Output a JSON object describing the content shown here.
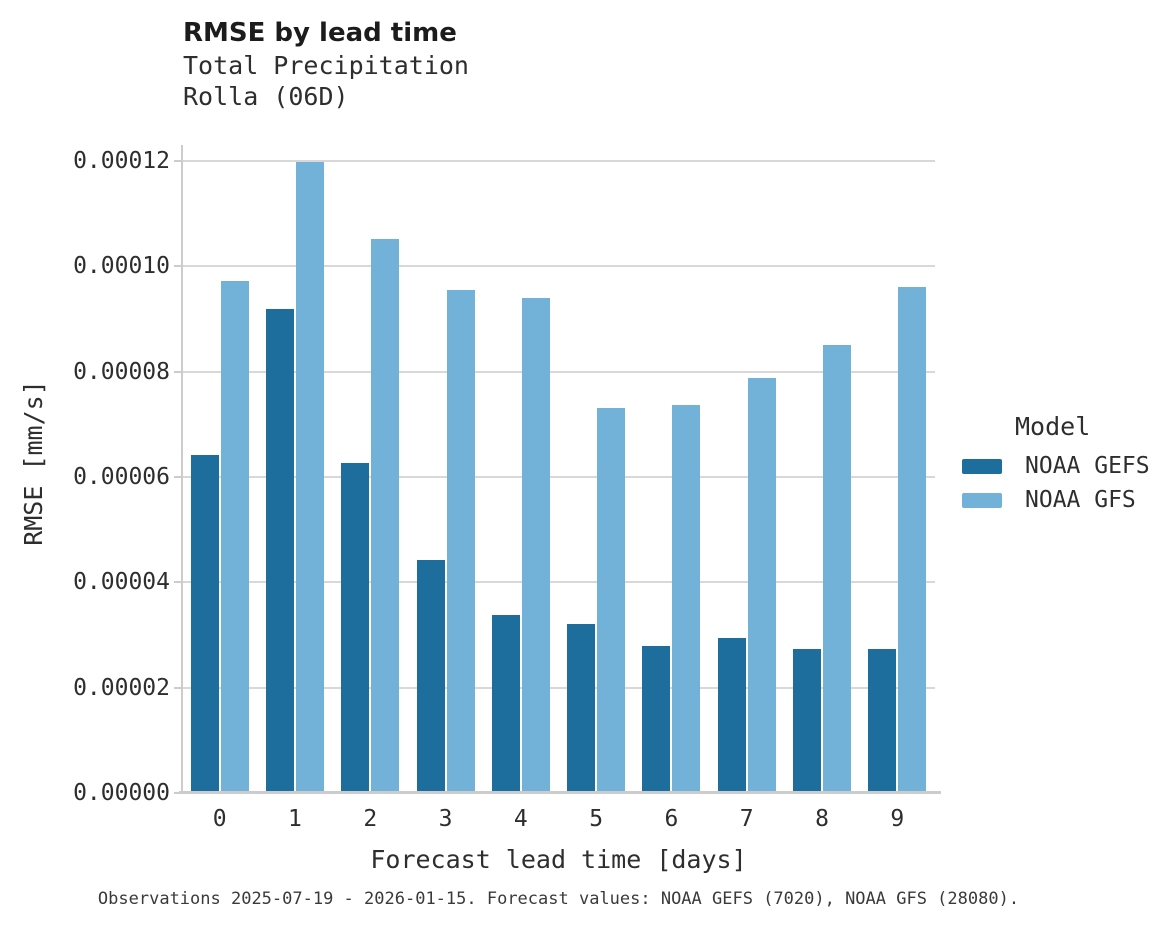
{
  "chart_data": {
    "type": "bar",
    "title": "RMSE by lead time",
    "subtitle": [
      "Total Precipitation",
      "Rolla (06D)"
    ],
    "xlabel": "Forecast lead time [days]",
    "ylabel": "RMSE [mm/s]",
    "categories": [
      "0",
      "1",
      "2",
      "3",
      "4",
      "5",
      "6",
      "7",
      "8",
      "9"
    ],
    "series": [
      {
        "name": "NOAA GEFS",
        "color": "#1d6e9c",
        "values": [
          6.42e-05,
          9.19e-05,
          6.26e-05,
          4.43e-05,
          3.38e-05,
          3.21e-05,
          2.79e-05,
          2.94e-05,
          2.73e-05,
          2.73e-05
        ]
      },
      {
        "name": "NOAA GFS",
        "color": "#72b1d8",
        "values": [
          9.72e-05,
          0.0001197,
          0.0001051,
          9.54e-05,
          9.4e-05,
          7.31e-05,
          7.37e-05,
          7.88e-05,
          8.51e-05,
          9.61e-05
        ]
      }
    ],
    "ylim": [
      0,
      0.000123
    ],
    "yticks": [
      0.0,
      2e-05,
      4e-05,
      6e-05,
      8e-05,
      0.0001,
      0.00012
    ],
    "ytick_format_decimals": 5,
    "grid": "horizontal",
    "legend_title": "Model",
    "legend_position": "right",
    "caption": "Observations 2025-07-19 - 2026-01-15. Forecast values: NOAA GEFS (7020), NOAA GFS (28080)."
  },
  "colors": {
    "gridline": "#d8d8d8",
    "axis": "#cccccc",
    "title_text": "#1c1c1c",
    "body_text": "#2e2e2e",
    "caption_text": "#3a3a3a",
    "background": "#ffffff"
  }
}
